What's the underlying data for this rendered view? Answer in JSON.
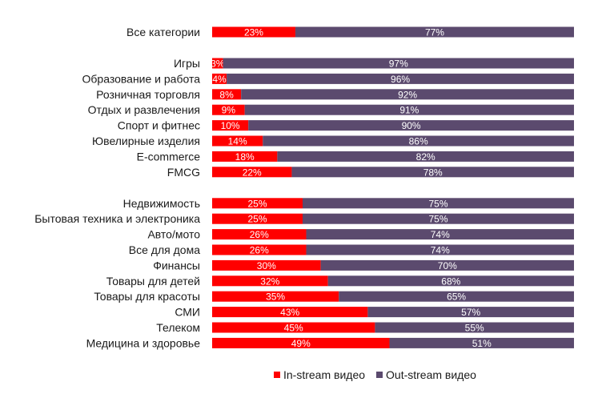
{
  "chart_data": {
    "type": "bar",
    "orientation": "horizontal",
    "stacked": true,
    "percent_stacked": true,
    "categories": [
      "Все категории",
      "Игры",
      "Образование и работа",
      "Розничная торговля",
      "Отдых и развлечения",
      "Спорт и фитнес",
      "Ювелирные изделия",
      "E-commerce",
      "FMCG",
      "Недвижимость",
      "Бытовая техника и электроника",
      "Авто/мото",
      "Все для дома",
      "Финансы",
      "Товары для детей",
      "Товары для красоты",
      "СМИ",
      "Телеком",
      "Медицина и здоровье"
    ],
    "groups": [
      [
        0
      ],
      [
        1,
        2,
        3,
        4,
        5,
        6,
        7,
        8
      ],
      [
        9,
        10,
        11,
        12,
        13,
        14,
        15,
        16,
        17,
        18
      ]
    ],
    "series": [
      {
        "name": "In-stream видео",
        "color": "#ff0000",
        "values": [
          23,
          3,
          4,
          8,
          9,
          10,
          14,
          18,
          22,
          25,
          25,
          26,
          26,
          30,
          32,
          35,
          43,
          45,
          49
        ],
        "labels": [
          "23%",
          "3%",
          "4%",
          "8%",
          "9%",
          "10%",
          "14%",
          "18%",
          "22%",
          "25%",
          "25%",
          "26%",
          "26%",
          "30%",
          "32%",
          "35%",
          "43%",
          "45%",
          "49%"
        ]
      },
      {
        "name": "Out-stream видео",
        "color": "#5b4a6e",
        "values": [
          77,
          97,
          96,
          92,
          91,
          90,
          86,
          82,
          78,
          75,
          75,
          74,
          74,
          70,
          68,
          65,
          57,
          55,
          51
        ],
        "labels": [
          "77%",
          "97%",
          "96%",
          "92%",
          "91%",
          "90%",
          "86%",
          "82%",
          "78%",
          "75%",
          "75%",
          "74%",
          "74%",
          "70%",
          "68%",
          "65%",
          "57%",
          "55%",
          "51%"
        ]
      }
    ],
    "xlim": [
      0,
      100
    ],
    "legend_position": "bottom"
  }
}
